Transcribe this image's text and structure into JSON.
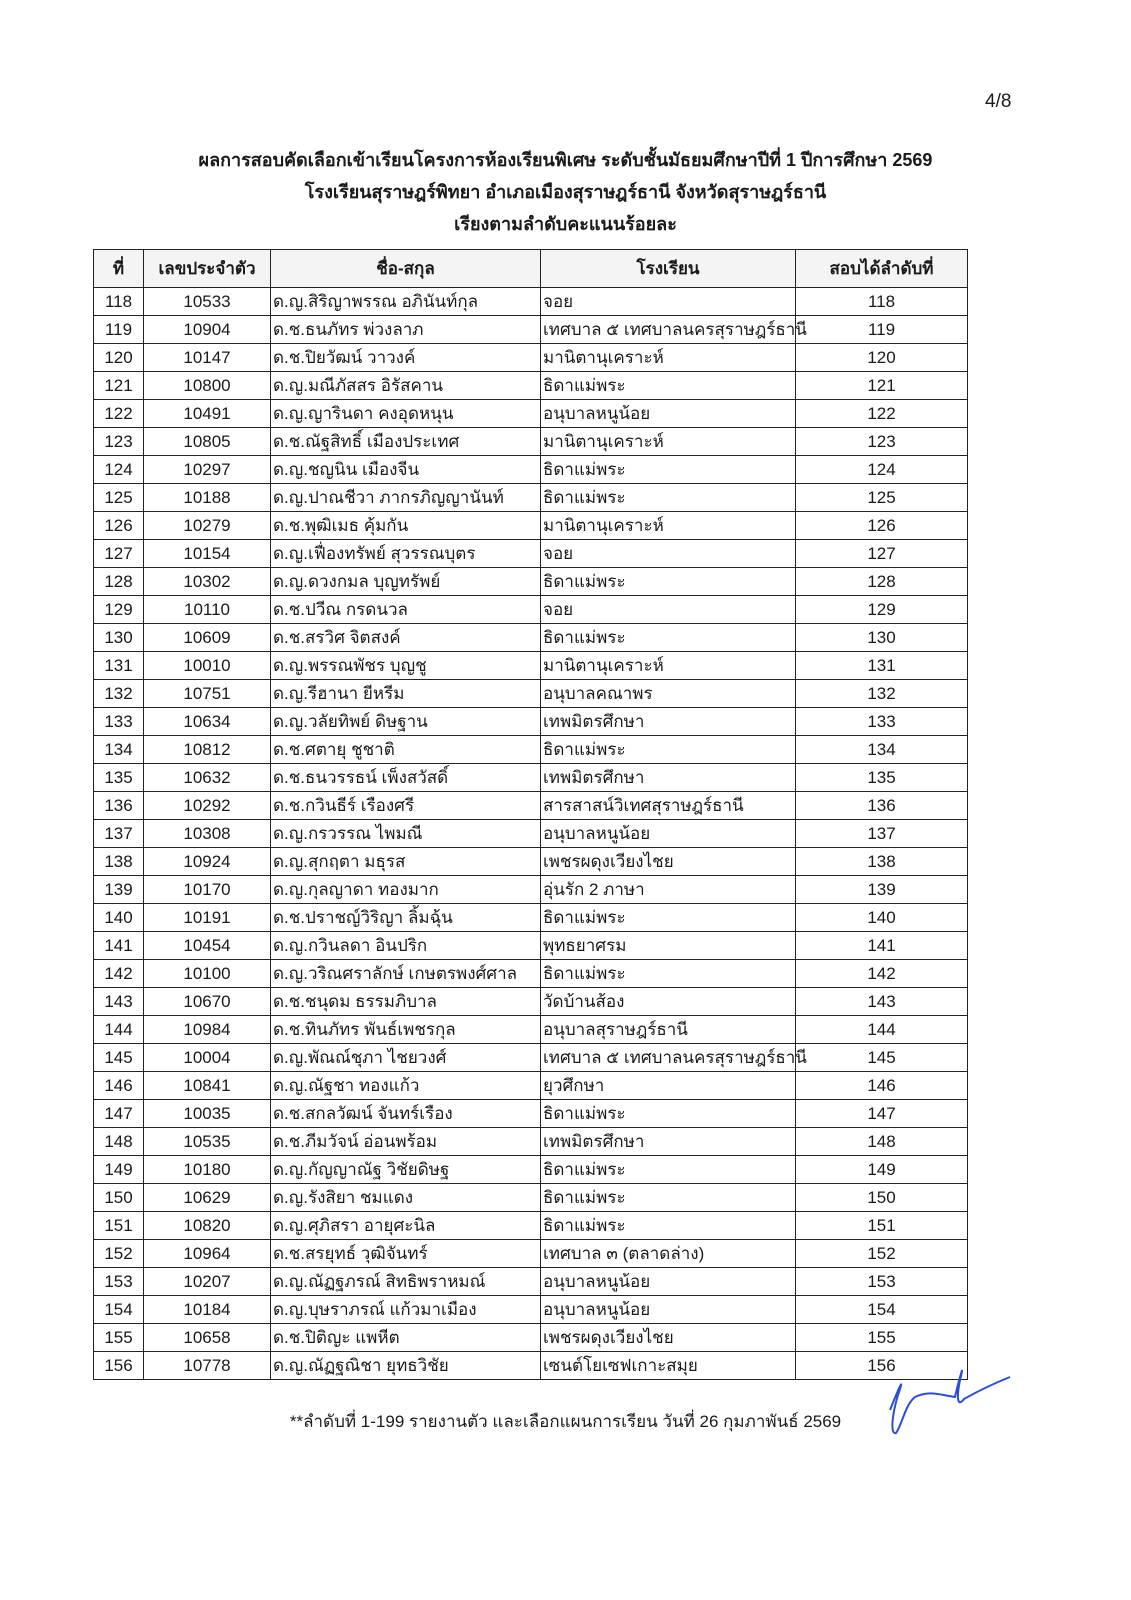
{
  "page_number": "4/8",
  "header": {
    "title_line1": "ผลการสอบคัดเลือกเข้าเรียนโครงการห้องเรียนพิเศษ ระดับชั้นมัธยมศึกษาปีที่ 1 ปีการศึกษา 2569",
    "title_line2": "โรงเรียนสุราษฎร์พิทยา อำเภอเมืองสุราษฎร์ธานี จังหวัดสุราษฎร์ธานี",
    "title_line3": "เรียงตามลำดับคะแนนร้อยละ"
  },
  "table": {
    "columns": [
      "ที่",
      "เลขประจำตัว",
      "ชื่อ-สกุล",
      "โรงเรียน",
      "สอบได้ลำดับที่"
    ],
    "rows": [
      [
        "118",
        "10533",
        "ด.ญ.สิริญาพรรณ อภินันท์กุล",
        "จอย",
        "118"
      ],
      [
        "119",
        "10904",
        "ด.ช.ธนภัทร พ่วงลาภ",
        "เทศบาล ๕ เทศบาลนครสุราษฎร์ธานี",
        "119"
      ],
      [
        "120",
        "10147",
        "ด.ช.ปิยวัฒน์ วาวงค์",
        "มานิตานุเคราะห์",
        "120"
      ],
      [
        "121",
        "10800",
        "ด.ญ.มณีภัสสร อิรัสคาน",
        "ธิดาแม่พระ",
        "121"
      ],
      [
        "122",
        "10491",
        "ด.ญ.ญารินดา คงอุดหนุน",
        "อนุบาลหนูน้อย",
        "122"
      ],
      [
        "123",
        "10805",
        "ด.ช.ณัฐสิทธิ์ เมืองประเทศ",
        "มานิตานุเคราะห์",
        "123"
      ],
      [
        "124",
        "10297",
        "ด.ญ.ชญนิน เมืองจีน",
        "ธิดาแม่พระ",
        "124"
      ],
      [
        "125",
        "10188",
        "ด.ญ.ปาณชีวา ภากรภิญญานันท์",
        "ธิดาแม่พระ",
        "125"
      ],
      [
        "126",
        "10279",
        "ด.ช.พุฒิเมธ คุ้มกัน",
        "มานิตานุเคราะห์",
        "126"
      ],
      [
        "127",
        "10154",
        "ด.ญ.เฟื่องทรัพย์ สุวรรณบุตร",
        "จอย",
        "127"
      ],
      [
        "128",
        "10302",
        "ด.ญ.ดวงกมล บุญทรัพย์",
        "ธิดาแม่พระ",
        "128"
      ],
      [
        "129",
        "10110",
        "ด.ช.ปวีณ กรดนวล",
        "จอย",
        "129"
      ],
      [
        "130",
        "10609",
        "ด.ช.สรวิศ จิตสงค์",
        "ธิดาแม่พระ",
        "130"
      ],
      [
        "131",
        "10010",
        "ด.ญ.พรรณพัชร บุญชู",
        "มานิตานุเคราะห์",
        "131"
      ],
      [
        "132",
        "10751",
        "ด.ญ.รีฮานา ยีหรีม",
        "อนุบาลคณาพร",
        "132"
      ],
      [
        "133",
        "10634",
        "ด.ญ.วลัยทิพย์ ดิษฐาน",
        "เทพมิตรศึกษา",
        "133"
      ],
      [
        "134",
        "10812",
        "ด.ช.ศตายุ ชูชาติ",
        "ธิดาแม่พระ",
        "134"
      ],
      [
        "135",
        "10632",
        "ด.ช.ธนวรรธน์ เพ็งสวัสดิ์",
        "เทพมิตรศึกษา",
        "135"
      ],
      [
        "136",
        "10292",
        "ด.ช.กวินธีร์ เรืองศรี",
        "สารสาสน์วิเทศสุราษฎร์ธานี",
        "136"
      ],
      [
        "137",
        "10308",
        "ด.ญ.กรวรรณ ไพมณี",
        "อนุบาลหนูน้อย",
        "137"
      ],
      [
        "138",
        "10924",
        "ด.ญ.สุกฤตา มธุรส",
        "เพชรผดุงเวียงไชย",
        "138"
      ],
      [
        "139",
        "10170",
        "ด.ญ.กุลญาดา ทองมาก",
        "อุ่นรัก 2 ภาษา",
        "139"
      ],
      [
        "140",
        "10191",
        "ด.ช.ปราชญ์วิริญา ลิ้มฉุ้น",
        "ธิดาแม่พระ",
        "140"
      ],
      [
        "141",
        "10454",
        "ด.ญ.กวินลดา อินปริก",
        "พุทธยาศรม",
        "141"
      ],
      [
        "142",
        "10100",
        "ด.ญ.วริณศราลักษ์ เกษตรพงศ์ศาล",
        "ธิดาแม่พระ",
        "142"
      ],
      [
        "143",
        "10670",
        "ด.ช.ชนุดม ธรรมภิบาล",
        "วัดบ้านส้อง",
        "143"
      ],
      [
        "144",
        "10984",
        "ด.ช.ทินภัทร พันธ์เพชรกุล",
        "อนุบาลสุราษฎร์ธานี",
        "144"
      ],
      [
        "145",
        "10004",
        "ด.ญ.พัณณ์ชุภา ไชยวงศ์",
        "เทศบาล ๕ เทศบาลนครสุราษฎร์ธานี",
        "145"
      ],
      [
        "146",
        "10841",
        "ด.ญ.ณัฐชา ทองแก้ว",
        "ยุวศึกษา",
        "146"
      ],
      [
        "147",
        "10035",
        "ด.ช.สกลวัฒน์ จันทร์เรือง",
        "ธิดาแม่พระ",
        "147"
      ],
      [
        "148",
        "10535",
        "ด.ช.ภีมวัจน์ อ่อนพร้อม",
        "เทพมิตรศึกษา",
        "148"
      ],
      [
        "149",
        "10180",
        "ด.ญ.กัญญาณัฐ วิชัยดิษฐ",
        "ธิดาแม่พระ",
        "149"
      ],
      [
        "150",
        "10629",
        "ด.ญ.รังสิยา ชมแดง",
        "ธิดาแม่พระ",
        "150"
      ],
      [
        "151",
        "10820",
        "ด.ญ.ศุภิสรา อายุศะนิล",
        "ธิดาแม่พระ",
        "151"
      ],
      [
        "152",
        "10964",
        "ด.ช.สรยุทธ์ วุฒิจันทร์",
        "เทศบาล ๓ (ตลาดล่าง)",
        "152"
      ],
      [
        "153",
        "10207",
        "ด.ญ.ณัฏฐภรณ์ สิทธิพราหมณ์",
        "อนุบาลหนูน้อย",
        "153"
      ],
      [
        "154",
        "10184",
        "ด.ญ.บุษราภรณ์ แก้วมาเมือง",
        "อนุบาลหนูน้อย",
        "154"
      ],
      [
        "155",
        "10658",
        "ด.ช.ปิติญะ แพหีต",
        "เพชรผดุงเวียงไชย",
        "155"
      ],
      [
        "156",
        "10778",
        "ด.ญ.ณัฏฐณิชา ยุทธวิชัย",
        "เซนต์โยเซฟเกาะสมุย",
        "156"
      ]
    ]
  },
  "footnote": "**ลำดับที่ 1-199 รายงานตัว และเลือกแผนการเรียน  วันที่ 26 กุมภาพันธ์ 2569",
  "signature_color": "#2a4fd6"
}
